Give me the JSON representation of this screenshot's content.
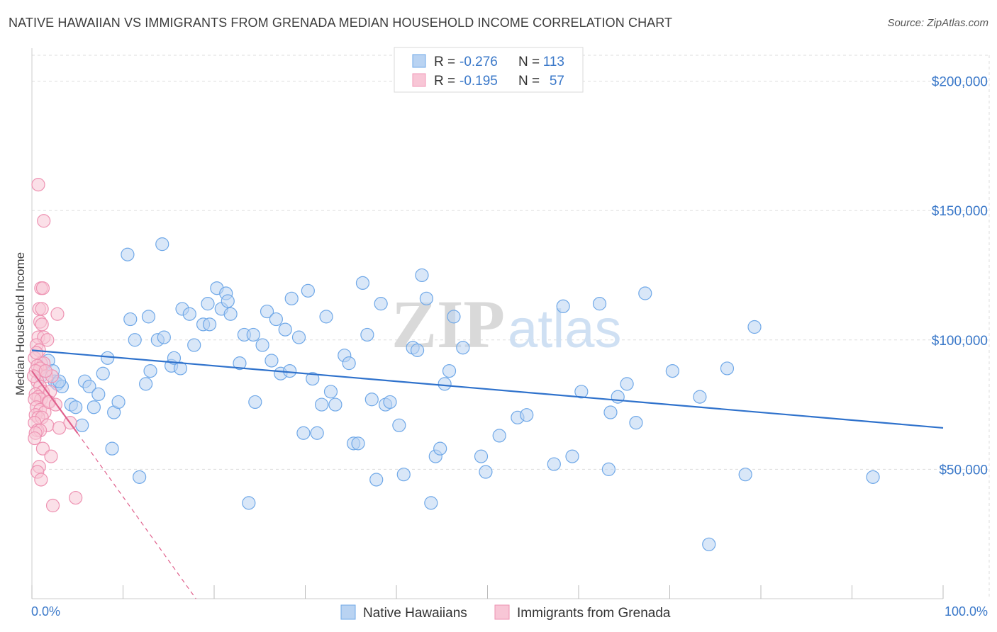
{
  "title": "NATIVE HAWAIIAN VS IMMIGRANTS FROM GRENADA MEDIAN HOUSEHOLD INCOME CORRELATION CHART",
  "source": "Source: ZipAtlas.com",
  "watermark": {
    "zip": "ZIP",
    "atlas": "atlas"
  },
  "legend_top": [
    {
      "r_label": "R =",
      "r_value": "-0.276",
      "n_label": "N =",
      "n_value": "113",
      "color": "#6fa8e8"
    },
    {
      "r_label": "R =",
      "r_value": "-0.195",
      "n_label": "N =",
      "n_value": "57",
      "color": "#f29ab8"
    }
  ],
  "colors": {
    "blue_fill": "#b9d3f2",
    "blue_stroke": "#6fa8e8",
    "blue_line": "#2f72cc",
    "pink_fill": "#f8c6d6",
    "pink_stroke": "#ee92b2",
    "pink_line": "#e0608c",
    "axis_text": "#3a78c9",
    "grid": "#dddddd"
  },
  "chart_data": {
    "type": "scatter",
    "title": "NATIVE HAWAIIAN VS IMMIGRANTS FROM GRENADA MEDIAN HOUSEHOLD INCOME CORRELATION CHART",
    "xlabel": "",
    "ylabel": "Median Household Income",
    "xlim": [
      0,
      100
    ],
    "ylim": [
      0,
      210000
    ],
    "x_tick_labels": [
      "0.0%",
      "100.0%"
    ],
    "y_ticks": [
      50000,
      100000,
      150000,
      200000
    ],
    "y_tick_labels": [
      "$50,000",
      "$100,000",
      "$150,000",
      "$200,000"
    ],
    "grid": true,
    "legend_position": "top-center",
    "series": [
      {
        "name": "Native Hawaiians",
        "color": "#6fa8e8",
        "trend": {
          "x": [
            0,
            100
          ],
          "y": [
            96000,
            66000
          ],
          "style": "solid"
        },
        "points": [
          [
            1.3,
            88000
          ],
          [
            1.8,
            92000
          ],
          [
            2.3,
            88000
          ],
          [
            2.5,
            84000
          ],
          [
            2.8,
            83000
          ],
          [
            3.3,
            82000
          ],
          [
            4.3,
            75000
          ],
          [
            4.8,
            74000
          ],
          [
            5.5,
            67000
          ],
          [
            5.8,
            84000
          ],
          [
            6.3,
            82000
          ],
          [
            6.8,
            74000
          ],
          [
            7.3,
            79000
          ],
          [
            7.8,
            87000
          ],
          [
            8.3,
            93000
          ],
          [
            8.8,
            58000
          ],
          [
            9.0,
            72000
          ],
          [
            9.5,
            76000
          ],
          [
            10.5,
            133000
          ],
          [
            10.8,
            108000
          ],
          [
            11.3,
            100000
          ],
          [
            11.8,
            47000
          ],
          [
            12.5,
            83000
          ],
          [
            12.8,
            109000
          ],
          [
            13.0,
            88000
          ],
          [
            13.8,
            100000
          ],
          [
            14.3,
            137000
          ],
          [
            14.5,
            101000
          ],
          [
            15.3,
            90000
          ],
          [
            15.6,
            93000
          ],
          [
            16.3,
            89000
          ],
          [
            16.5,
            112000
          ],
          [
            17.3,
            110000
          ],
          [
            17.8,
            98000
          ],
          [
            18.8,
            106000
          ],
          [
            19.3,
            114000
          ],
          [
            19.5,
            106000
          ],
          [
            20.3,
            120000
          ],
          [
            20.8,
            112000
          ],
          [
            21.3,
            118000
          ],
          [
            21.5,
            115000
          ],
          [
            21.8,
            110000
          ],
          [
            22.8,
            91000
          ],
          [
            23.3,
            102000
          ],
          [
            23.8,
            37000
          ],
          [
            24.3,
            102000
          ],
          [
            24.5,
            76000
          ],
          [
            25.3,
            98000
          ],
          [
            25.8,
            111000
          ],
          [
            26.3,
            92000
          ],
          [
            26.8,
            108000
          ],
          [
            27.3,
            87000
          ],
          [
            27.8,
            104000
          ],
          [
            28.3,
            88000
          ],
          [
            28.5,
            116000
          ],
          [
            29.3,
            101000
          ],
          [
            29.8,
            64000
          ],
          [
            30.3,
            119000
          ],
          [
            30.8,
            85000
          ],
          [
            31.3,
            64000
          ],
          [
            31.8,
            75000
          ],
          [
            32.3,
            109000
          ],
          [
            32.8,
            80000
          ],
          [
            33.3,
            75000
          ],
          [
            34.3,
            94000
          ],
          [
            34.8,
            91000
          ],
          [
            35.3,
            60000
          ],
          [
            35.8,
            60000
          ],
          [
            36.3,
            122000
          ],
          [
            36.8,
            102000
          ],
          [
            37.3,
            77000
          ],
          [
            37.8,
            46000
          ],
          [
            38.3,
            114000
          ],
          [
            38.8,
            75000
          ],
          [
            39.3,
            76000
          ],
          [
            40.3,
            67000
          ],
          [
            40.8,
            48000
          ],
          [
            41.8,
            97000
          ],
          [
            42.3,
            96000
          ],
          [
            42.8,
            125000
          ],
          [
            43.3,
            116000
          ],
          [
            43.8,
            37000
          ],
          [
            44.3,
            55000
          ],
          [
            44.8,
            58000
          ],
          [
            45.3,
            83000
          ],
          [
            45.8,
            88000
          ],
          [
            46.3,
            109000
          ],
          [
            47.3,
            97000
          ],
          [
            49.3,
            55000
          ],
          [
            49.8,
            49000
          ],
          [
            51.3,
            63000
          ],
          [
            53.3,
            70000
          ],
          [
            54.3,
            71000
          ],
          [
            57.3,
            52000
          ],
          [
            58.3,
            113000
          ],
          [
            59.3,
            55000
          ],
          [
            60.3,
            80000
          ],
          [
            62.3,
            114000
          ],
          [
            63.3,
            50000
          ],
          [
            63.5,
            72000
          ],
          [
            64.3,
            78000
          ],
          [
            65.3,
            83000
          ],
          [
            66.3,
            68000
          ],
          [
            67.3,
            118000
          ],
          [
            70.3,
            88000
          ],
          [
            73.3,
            78000
          ],
          [
            74.3,
            21000
          ],
          [
            76.3,
            89000
          ],
          [
            78.3,
            48000
          ],
          [
            79.3,
            105000
          ],
          [
            92.3,
            47000
          ],
          [
            1.0,
            86000
          ],
          [
            3.0,
            84000
          ]
        ]
      },
      {
        "name": "Immigrants from Grenada",
        "color": "#ee92b2",
        "trend": {
          "x": [
            0,
            5
          ],
          "y": [
            88000,
            64000
          ],
          "style": "solid",
          "dash_to": [
            18,
            0
          ]
        },
        "points": [
          [
            0.7,
            160000
          ],
          [
            1.3,
            146000
          ],
          [
            1.0,
            120000
          ],
          [
            1.2,
            120000
          ],
          [
            0.8,
            112000
          ],
          [
            1.1,
            112000
          ],
          [
            2.8,
            110000
          ],
          [
            0.9,
            107000
          ],
          [
            1.1,
            106000
          ],
          [
            0.7,
            101000
          ],
          [
            1.3,
            101000
          ],
          [
            1.7,
            100000
          ],
          [
            0.5,
            98000
          ],
          [
            0.8,
            96000
          ],
          [
            0.3,
            93000
          ],
          [
            1.0,
            91000
          ],
          [
            1.3,
            91000
          ],
          [
            0.6,
            90000
          ],
          [
            0.9,
            89000
          ],
          [
            0.4,
            88000
          ],
          [
            1.6,
            86000
          ],
          [
            2.2,
            86000
          ],
          [
            0.6,
            84000
          ],
          [
            0.9,
            82000
          ],
          [
            1.2,
            80000
          ],
          [
            2.0,
            80000
          ],
          [
            0.4,
            79000
          ],
          [
            0.7,
            78000
          ],
          [
            1.0,
            77000
          ],
          [
            0.3,
            77000
          ],
          [
            1.8,
            76000
          ],
          [
            0.5,
            74000
          ],
          [
            0.9,
            73000
          ],
          [
            1.4,
            72000
          ],
          [
            0.4,
            71000
          ],
          [
            0.7,
            70000
          ],
          [
            1.1,
            70000
          ],
          [
            0.3,
            68000
          ],
          [
            1.7,
            67000
          ],
          [
            3.0,
            66000
          ],
          [
            4.2,
            68000
          ],
          [
            0.6,
            65000
          ],
          [
            0.9,
            65000
          ],
          [
            0.4,
            64000
          ],
          [
            1.2,
            58000
          ],
          [
            2.1,
            55000
          ],
          [
            0.8,
            51000
          ],
          [
            0.6,
            49000
          ],
          [
            1.0,
            46000
          ],
          [
            4.8,
            39000
          ],
          [
            2.3,
            36000
          ],
          [
            1.5,
            88000
          ],
          [
            0.2,
            86000
          ],
          [
            0.5,
            95000
          ],
          [
            1.9,
            76000
          ],
          [
            0.3,
            62000
          ],
          [
            2.6,
            75000
          ]
        ]
      }
    ]
  },
  "bottom_legend": [
    {
      "label": "Native Hawaiians",
      "color": "#6fa8e8"
    },
    {
      "label": "Immigrants from Grenada",
      "color": "#ee92b2"
    }
  ]
}
